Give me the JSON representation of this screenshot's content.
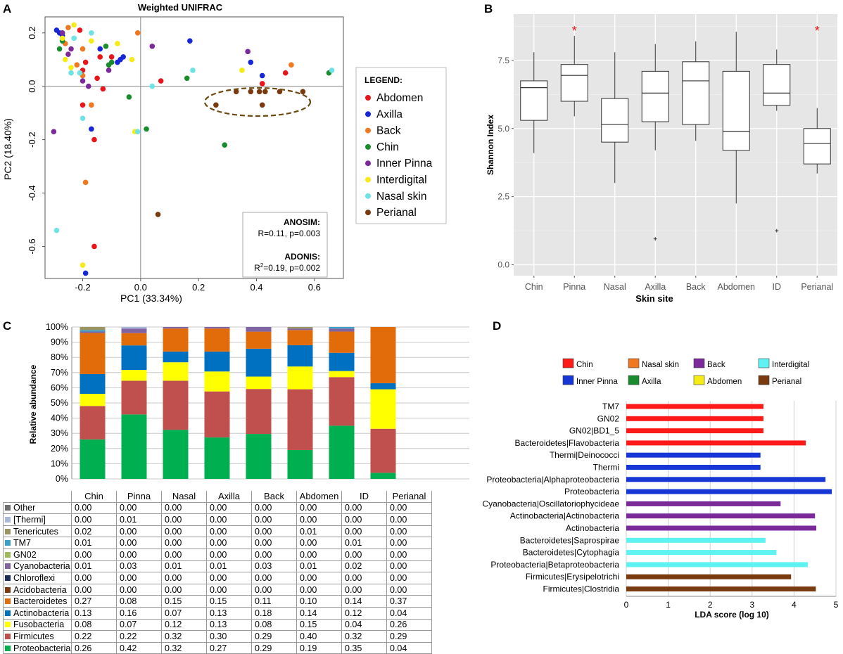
{
  "panel_letters": {
    "a": "A",
    "b": "B",
    "c": "C",
    "d": "D"
  },
  "chart_data": [
    {
      "id": "A",
      "type": "scatter",
      "title": "Weighted UNIFRAC",
      "xlabel": "PC1 (33.34%)",
      "ylabel": "PC2 (18.40%)",
      "xlim": [
        -0.33,
        0.7
      ],
      "ylim": [
        -0.72,
        0.26
      ],
      "xticks": [
        -0.2,
        0.0,
        0.2,
        0.4,
        0.6
      ],
      "xtick_labels": [
        "-0.2",
        "0.0",
        "0.2",
        "0.4",
        "0.6"
      ],
      "yticks": [
        0.2,
        0.0,
        -0.2,
        -0.4,
        -0.6
      ],
      "ytick_labels": [
        "0.2",
        "0.0",
        "-0.2",
        "-0.4",
        "-0.6"
      ],
      "legend_title": "LEGEND:",
      "series": [
        {
          "name": "Abdomen",
          "color": "#e8161c",
          "points": [
            [
              -0.21,
              0.21
            ],
            [
              -0.19,
              0.09
            ],
            [
              -0.14,
              0.11
            ],
            [
              -0.2,
              0.06
            ],
            [
              -0.15,
              0.03
            ],
            [
              -0.13,
              -0.01
            ],
            [
              -0.2,
              -0.07
            ],
            [
              -0.16,
              -0.2
            ],
            [
              -0.16,
              -0.6
            ],
            [
              0.07,
              0.02
            ],
            [
              0.42,
              0.01
            ],
            [
              0.5,
              0.05
            ],
            [
              -0.1,
              0.11
            ]
          ]
        },
        {
          "name": "Axilla",
          "color": "#1726d8",
          "points": [
            [
              -0.29,
              0.21
            ],
            [
              -0.28,
              0.2
            ],
            [
              -0.27,
              0.19
            ],
            [
              -0.07,
              0.1
            ],
            [
              -0.08,
              0.09
            ],
            [
              -0.06,
              0.11
            ],
            [
              0.17,
              0.17
            ],
            [
              0.38,
              0.09
            ],
            [
              0.42,
              0.04
            ],
            [
              -0.17,
              -0.16
            ],
            [
              -0.19,
              -0.7
            ],
            [
              -0.14,
              0.14
            ]
          ]
        },
        {
          "name": "Back",
          "color": "#f07820",
          "points": [
            [
              -0.01,
              0.2
            ],
            [
              -0.26,
              0.16
            ],
            [
              -0.2,
              0.14
            ],
            [
              -0.22,
              0.08
            ],
            [
              -0.2,
              0.04
            ],
            [
              -0.17,
              -0.07
            ],
            [
              -0.19,
              -0.36
            ],
            [
              0.52,
              0.08
            ],
            [
              -0.25,
              0.22
            ]
          ]
        },
        {
          "name": "Chin",
          "color": "#1a8c2e",
          "points": [
            [
              -0.28,
              0.14
            ],
            [
              -0.12,
              0.15
            ],
            [
              -0.11,
              0.08
            ],
            [
              -0.1,
              0.09
            ],
            [
              -0.04,
              -0.04
            ],
            [
              0.02,
              -0.16
            ],
            [
              0.16,
              0.03
            ],
            [
              0.29,
              -0.22
            ],
            [
              0.65,
              0.05
            ],
            [
              -0.27,
              0.17
            ]
          ]
        },
        {
          "name": "Inner Pinna",
          "color": "#7b2a9a",
          "points": [
            [
              -0.24,
              0.14
            ],
            [
              -0.25,
              0.12
            ],
            [
              -0.3,
              -0.17
            ],
            [
              -0.2,
              0.02
            ],
            [
              -0.18,
              0.0
            ],
            [
              -0.11,
              0.06
            ],
            [
              0.04,
              0.15
            ],
            [
              0.37,
              0.13
            ],
            [
              -0.27,
              0.2
            ]
          ]
        },
        {
          "name": "Interdigital",
          "color": "#f5ec17",
          "points": [
            [
              -0.23,
              0.23
            ],
            [
              -0.26,
              0.1
            ],
            [
              -0.17,
              0.17
            ],
            [
              -0.08,
              0.16
            ],
            [
              -0.03,
              0.1
            ],
            [
              -0.02,
              -0.17
            ],
            [
              0.35,
              0.06
            ],
            [
              -0.2,
              -0.67
            ],
            [
              -0.24,
              0.07
            ],
            [
              -0.27,
              0.18
            ]
          ]
        },
        {
          "name": "Nasal skin",
          "color": "#6fe3e3",
          "points": [
            [
              -0.23,
              0.18
            ],
            [
              -0.21,
              0.05
            ],
            [
              -0.17,
              0.2
            ],
            [
              -0.2,
              -0.12
            ],
            [
              0.04,
              0.0
            ],
            [
              -0.01,
              -0.17
            ],
            [
              0.18,
              0.06
            ],
            [
              0.66,
              0.06
            ],
            [
              -0.29,
              -0.54
            ],
            [
              -0.24,
              0.05
            ]
          ]
        },
        {
          "name": "Perianal",
          "color": "#7a3a10",
          "points": [
            [
              0.26,
              -0.07
            ],
            [
              0.33,
              -0.02
            ],
            [
              0.38,
              -0.02
            ],
            [
              0.41,
              -0.02
            ],
            [
              0.43,
              -0.02
            ],
            [
              0.48,
              -0.02
            ],
            [
              0.56,
              -0.02
            ],
            [
              0.42,
              -0.07
            ],
            [
              0.06,
              -0.48
            ]
          ]
        }
      ],
      "annotations": {
        "anosim_label": "ANOSIM:",
        "anosim_value": "R=0.11, p=0.003",
        "adonis_label": "ADONIS:",
        "adonis_r": "R",
        "adonis_sup": "2",
        "adonis_value": "=0.19, p=0.002"
      },
      "ellipse_note": "dashed ellipse around Perianal cluster"
    },
    {
      "id": "B",
      "type": "boxplot",
      "xlabel": "Skin site",
      "ylabel": "Shannon Index",
      "ylim": [
        -0.4,
        9.2
      ],
      "yticks": [
        0.0,
        2.5,
        5.0,
        7.5
      ],
      "ytick_labels": [
        "0.0",
        "2.5",
        "5.0",
        "7.5"
      ],
      "categories": [
        "Chin",
        "Pinna",
        "Nasal",
        "Axilla",
        "Back",
        "Abdomen",
        "ID",
        "Perianal"
      ],
      "boxes": [
        {
          "min": 4.1,
          "q1": 5.3,
          "median": 6.5,
          "q3": 6.75,
          "max": 7.8,
          "outliers": []
        },
        {
          "min": 5.45,
          "q1": 6.0,
          "median": 6.95,
          "q3": 7.35,
          "max": 8.4,
          "outliers": []
        },
        {
          "min": 3.0,
          "q1": 4.5,
          "median": 5.15,
          "q3": 6.1,
          "max": 7.8,
          "outliers": []
        },
        {
          "min": 4.2,
          "q1": 5.25,
          "median": 6.3,
          "q3": 7.1,
          "max": 8.1,
          "outliers": [
            0.95
          ]
        },
        {
          "min": 4.55,
          "q1": 5.15,
          "median": 6.75,
          "q3": 7.45,
          "max": 8.2,
          "outliers": []
        },
        {
          "min": 2.25,
          "q1": 4.2,
          "median": 4.9,
          "q3": 7.1,
          "max": 8.55,
          "outliers": []
        },
        {
          "min": 5.65,
          "q1": 5.85,
          "median": 6.3,
          "q3": 7.35,
          "max": 7.9,
          "outliers": [
            1.25
          ]
        },
        {
          "min": 3.35,
          "q1": 3.7,
          "median": 4.45,
          "q3": 5.0,
          "max": 5.75,
          "outliers": []
        }
      ],
      "significance_marker": "*",
      "significant": [
        "Pinna",
        "Perianal"
      ]
    },
    {
      "id": "C",
      "type": "bar",
      "stacked": true,
      "ylabel": "Relative abundance",
      "ylim": [
        0,
        100
      ],
      "yticks": [
        0,
        10,
        20,
        30,
        40,
        50,
        60,
        70,
        80,
        90,
        100
      ],
      "ytick_labels": [
        "0%",
        "10%",
        "20%",
        "30%",
        "40%",
        "50%",
        "60%",
        "70%",
        "80%",
        "90%",
        "100%"
      ],
      "categories": [
        "Chin",
        "Pinna",
        "Nasal",
        "Axilla",
        "Back",
        "Abdomen",
        "ID",
        "Perianal"
      ],
      "series": [
        {
          "name": "Other",
          "color": "#6e6e6e",
          "values": [
            "0.00",
            "0.00",
            "0.00",
            "0.00",
            "0.00",
            "0.00",
            "0.00",
            "0.00"
          ]
        },
        {
          "name": "[Thermi]",
          "color": "#a9b9dc",
          "values": [
            "0.00",
            "0.01",
            "0.00",
            "0.00",
            "0.00",
            "0.00",
            "0.00",
            "0.00"
          ]
        },
        {
          "name": "Tenericutes",
          "color": "#9a9460",
          "values": [
            "0.02",
            "0.00",
            "0.00",
            "0.00",
            "0.00",
            "0.01",
            "0.00",
            "0.00"
          ]
        },
        {
          "name": "TM7",
          "color": "#3aa0c8",
          "values": [
            "0.01",
            "0.00",
            "0.00",
            "0.00",
            "0.00",
            "0.00",
            "0.01",
            "0.00"
          ]
        },
        {
          "name": "GN02",
          "color": "#9cbb58",
          "values": [
            "0.00",
            "0.00",
            "0.00",
            "0.00",
            "0.00",
            "0.00",
            "0.00",
            "0.00"
          ]
        },
        {
          "name": "Cyanobacteria",
          "color": "#8064a2",
          "values": [
            "0.01",
            "0.03",
            "0.01",
            "0.01",
            "0.03",
            "0.01",
            "0.02",
            "0.00"
          ]
        },
        {
          "name": "Chloroflexi",
          "color": "#1f2d5a",
          "values": [
            "0.00",
            "0.00",
            "0.00",
            "0.00",
            "0.00",
            "0.00",
            "0.00",
            "0.00"
          ]
        },
        {
          "name": "Acidobacteria",
          "color": "#7b3a12",
          "values": [
            "0.00",
            "0.00",
            "0.00",
            "0.00",
            "0.00",
            "0.00",
            "0.00",
            "0.00"
          ]
        },
        {
          "name": "Bacteroidetes",
          "color": "#e36c0a",
          "values": [
            "0.27",
            "0.08",
            "0.15",
            "0.15",
            "0.11",
            "0.10",
            "0.14",
            "0.37"
          ]
        },
        {
          "name": "Actinobacteria",
          "color": "#0070c0",
          "values": [
            "0.13",
            "0.16",
            "0.07",
            "0.13",
            "0.18",
            "0.14",
            "0.12",
            "0.04"
          ]
        },
        {
          "name": "Fusobacteria",
          "color": "#ffff00",
          "values": [
            "0.08",
            "0.07",
            "0.12",
            "0.13",
            "0.08",
            "0.15",
            "0.04",
            "0.26"
          ]
        },
        {
          "name": "Firmicutes",
          "color": "#c0504d",
          "values": [
            "0.22",
            "0.22",
            "0.32",
            "0.30",
            "0.29",
            "0.40",
            "0.32",
            "0.29"
          ]
        },
        {
          "name": "Proteobacteria",
          "color": "#00b050",
          "values": [
            "0.26",
            "0.42",
            "0.32",
            "0.27",
            "0.29",
            "0.19",
            "0.35",
            "0.04"
          ]
        }
      ]
    },
    {
      "id": "D",
      "type": "bar",
      "orientation": "horizontal",
      "xlabel": "LDA score (log 10)",
      "xlim": [
        0,
        5
      ],
      "xticks": [
        0,
        1,
        2,
        3,
        4,
        5
      ],
      "xtick_labels": [
        "0",
        "1",
        "2",
        "3",
        "4",
        "5"
      ],
      "legend": [
        {
          "name": "Chin",
          "color": "#ff1a1a"
        },
        {
          "name": "Nasal skin",
          "color": "#f07820"
        },
        {
          "name": "Back",
          "color": "#7b2a9a"
        },
        {
          "name": "Interdigital",
          "color": "#5ef2f2"
        },
        {
          "name": "Inner Pinna",
          "color": "#1736d6"
        },
        {
          "name": "Axilla",
          "color": "#1a8c2e"
        },
        {
          "name": "Abdomen",
          "color": "#f5ec17"
        },
        {
          "name": "Perianal",
          "color": "#7a3a10"
        }
      ],
      "bars": [
        {
          "label": "TM7",
          "value": 3.27,
          "group": "Chin"
        },
        {
          "label": "GN02",
          "value": 3.27,
          "group": "Chin"
        },
        {
          "label": "GN02|BD1_5",
          "value": 3.27,
          "group": "Chin"
        },
        {
          "label": "Bacteroidetes|Flavobacteria",
          "value": 4.28,
          "group": "Chin"
        },
        {
          "label": "Thermi|Deinococci",
          "value": 3.2,
          "group": "Inner Pinna"
        },
        {
          "label": "Thermi",
          "value": 3.2,
          "group": "Inner Pinna"
        },
        {
          "label": "Proteobacteria|Alphaproteobacteria",
          "value": 4.75,
          "group": "Inner Pinna"
        },
        {
          "label": "Proteobacteria",
          "value": 4.9,
          "group": "Inner Pinna"
        },
        {
          "label": "Cyanobacteria|Oscillatoriophycideae",
          "value": 3.68,
          "group": "Back"
        },
        {
          "label": "Actinobacteria|Actinobacteria",
          "value": 4.5,
          "group": "Back"
        },
        {
          "label": "Actinobacteria",
          "value": 4.53,
          "group": "Back"
        },
        {
          "label": "Bacteroidetes|Saprospirae",
          "value": 3.32,
          "group": "Interdigital"
        },
        {
          "label": "Bacteroidetes|Cytophagia",
          "value": 3.58,
          "group": "Interdigital"
        },
        {
          "label": "Proteobacteria|Betaproteobacteria",
          "value": 4.33,
          "group": "Interdigital"
        },
        {
          "label": "Firmicutes|Erysipelotrichi",
          "value": 3.93,
          "group": "Perianal"
        },
        {
          "label": "Firmicutes|Clostridia",
          "value": 4.52,
          "group": "Perianal"
        }
      ]
    }
  ]
}
